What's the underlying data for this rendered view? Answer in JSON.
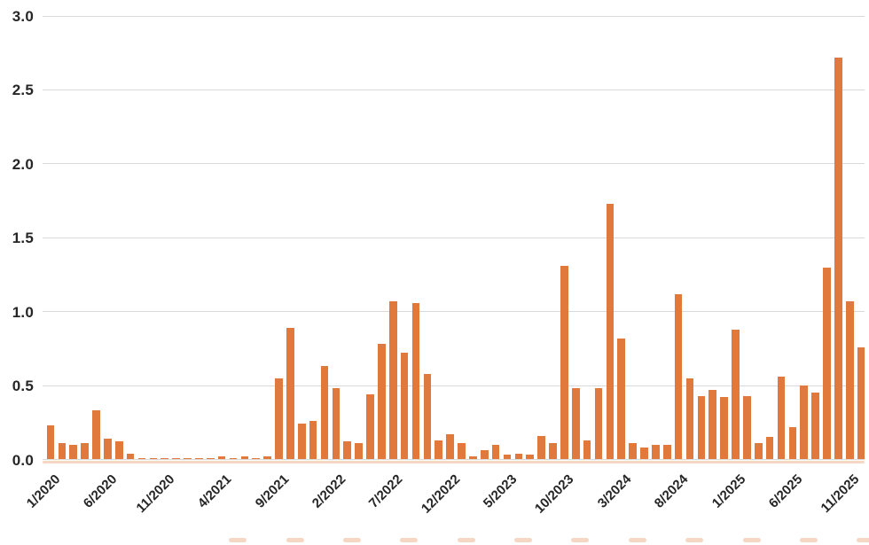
{
  "chart_data": {
    "type": "bar",
    "title": "",
    "xlabel": "",
    "ylabel": "",
    "ylim": [
      0,
      3.0
    ],
    "grid": "horizontal",
    "legend": "none",
    "bar_color": "#e2793c",
    "gridline_color": "#d9d9d9",
    "label_color": "#262626",
    "x": [
      "1/2020",
      "2/2020",
      "3/2020",
      "4/2020",
      "5/2020",
      "6/2020",
      "7/2020",
      "8/2020",
      "9/2020",
      "10/2020",
      "11/2020",
      "12/2020",
      "1/2021",
      "2/2021",
      "3/2021",
      "4/2021",
      "5/2021",
      "6/2021",
      "7/2021",
      "8/2021",
      "9/2021",
      "10/2021",
      "11/2021",
      "12/2021",
      "1/2022",
      "2/2022",
      "3/2022",
      "4/2022",
      "5/2022",
      "6/2022",
      "7/2022",
      "8/2022",
      "9/2022",
      "10/2022",
      "11/2022",
      "12/2022",
      "1/2023",
      "2/2023",
      "3/2023",
      "4/2023",
      "5/2023",
      "6/2023",
      "7/2023",
      "8/2023",
      "9/2023",
      "10/2023",
      "11/2023",
      "12/2023",
      "1/2024",
      "2/2024",
      "3/2024",
      "4/2024",
      "5/2024",
      "6/2024",
      "7/2024",
      "8/2024",
      "9/2024",
      "10/2024",
      "11/2024",
      "12/2024",
      "1/2025",
      "2/2025",
      "3/2025",
      "4/2025",
      "5/2025",
      "6/2025",
      "7/2025",
      "8/2025",
      "9/2025",
      "10/2025",
      "11/2025",
      "12/2025"
    ],
    "values": [
      0.23,
      0.11,
      0.1,
      0.11,
      0.33,
      0.14,
      0.12,
      0.04,
      0.01,
      0.01,
      0.01,
      0.01,
      0.01,
      0.01,
      0.01,
      0.02,
      0.01,
      0.02,
      0.01,
      0.02,
      0.55,
      0.89,
      0.24,
      0.26,
      0.63,
      0.48,
      0.12,
      0.11,
      0.44,
      0.78,
      1.07,
      0.72,
      1.06,
      0.58,
      0.13,
      0.17,
      0.11,
      0.02,
      0.06,
      0.1,
      0.03,
      0.04,
      0.03,
      0.16,
      0.11,
      1.31,
      0.48,
      0.13,
      0.48,
      1.73,
      0.82,
      0.11,
      0.08,
      0.1,
      0.1,
      1.12,
      0.55,
      0.43,
      0.47,
      0.42,
      0.88,
      0.43,
      0.11,
      0.15,
      0.56,
      0.22,
      0.5,
      0.45,
      1.3,
      2.72,
      1.07,
      0.76
    ],
    "x_tick_every": 5,
    "x_tick_labels": [
      "1/2020",
      "6/2020",
      "11/2020",
      "4/2021",
      "9/2021",
      "2/2022",
      "7/2022",
      "12/2022",
      "5/2023",
      "10/2023",
      "3/2024",
      "8/2024",
      "1/2025",
      "6/2025",
      "11/2025"
    ],
    "y_tick_labels": [
      "0.0",
      "0.5",
      "1.0",
      "1.5",
      "2.0",
      "2.5",
      "3.0"
    ]
  }
}
